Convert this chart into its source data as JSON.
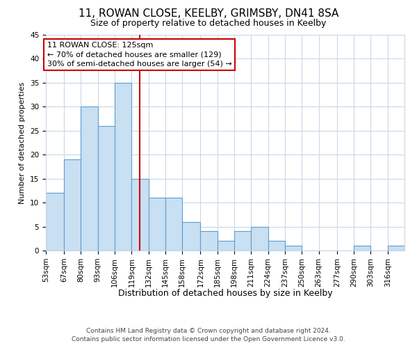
{
  "title": "11, ROWAN CLOSE, KEELBY, GRIMSBY, DN41 8SA",
  "subtitle": "Size of property relative to detached houses in Keelby",
  "xlabel": "Distribution of detached houses by size in Keelby",
  "ylabel": "Number of detached properties",
  "bin_labels": [
    "53sqm",
    "67sqm",
    "80sqm",
    "93sqm",
    "106sqm",
    "119sqm",
    "132sqm",
    "145sqm",
    "158sqm",
    "172sqm",
    "185sqm",
    "198sqm",
    "211sqm",
    "224sqm",
    "237sqm",
    "250sqm",
    "263sqm",
    "277sqm",
    "290sqm",
    "303sqm",
    "316sqm"
  ],
  "bin_edges": [
    53,
    67,
    80,
    93,
    106,
    119,
    132,
    145,
    158,
    172,
    185,
    198,
    211,
    224,
    237,
    250,
    263,
    277,
    290,
    303,
    316,
    329
  ],
  "counts": [
    12,
    19,
    30,
    26,
    35,
    15,
    11,
    11,
    6,
    4,
    2,
    4,
    5,
    2,
    1,
    0,
    0,
    0,
    1,
    0,
    1
  ],
  "bar_color": "#c9dff2",
  "bar_edge_color": "#5a9fd4",
  "property_line_x": 125,
  "property_line_color": "#cc0000",
  "ann_line1": "11 ROWAN CLOSE: 125sqm",
  "ann_line2": "← 70% of detached houses are smaller (129)",
  "ann_line3": "30% of semi-detached houses are larger (54) →",
  "ylim": [
    0,
    45
  ],
  "yticks": [
    0,
    5,
    10,
    15,
    20,
    25,
    30,
    35,
    40,
    45
  ],
  "footer_line1": "Contains HM Land Registry data © Crown copyright and database right 2024.",
  "footer_line2": "Contains public sector information licensed under the Open Government Licence v3.0.",
  "background_color": "#ffffff",
  "grid_color": "#c8d8e8",
  "title_fontsize": 11,
  "subtitle_fontsize": 9,
  "xlabel_fontsize": 9,
  "ylabel_fontsize": 8,
  "tick_fontsize": 7.5,
  "footer_fontsize": 6.5,
  "annotation_fontsize": 8
}
